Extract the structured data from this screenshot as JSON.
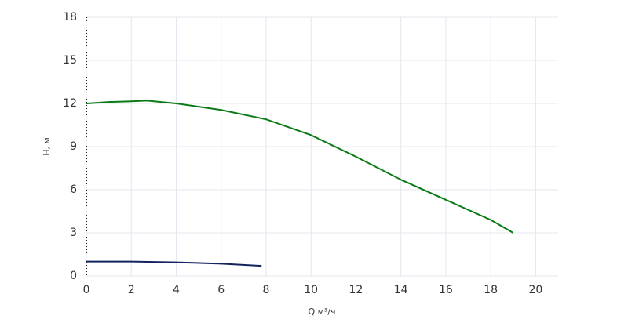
{
  "chart_data": {
    "type": "line",
    "x_label": "Q м³/ч",
    "y_label": "H, м",
    "series": [
      {
        "color": "#0a7a14",
        "x": [
          0,
          1,
          2,
          2.7,
          4,
          6,
          8,
          10,
          12,
          14,
          16,
          18,
          19
        ],
        "values": [
          12.0,
          12.1,
          12.15,
          12.2,
          12.0,
          11.55,
          10.9,
          9.8,
          8.3,
          6.7,
          5.3,
          3.9,
          3.0
        ]
      },
      {
        "color": "#13235e",
        "x": [
          0,
          2,
          4,
          6,
          7.8
        ],
        "values": [
          1.0,
          1.0,
          0.95,
          0.85,
          0.7
        ]
      }
    ],
    "xlim": [
      0,
      21
    ],
    "ylim": [
      0,
      18
    ],
    "xticks": [
      0,
      2,
      4,
      6,
      8,
      10,
      12,
      14,
      16,
      18,
      20
    ],
    "yticks": [
      0,
      3,
      6,
      9,
      12,
      15,
      18
    ],
    "grid": true
  }
}
